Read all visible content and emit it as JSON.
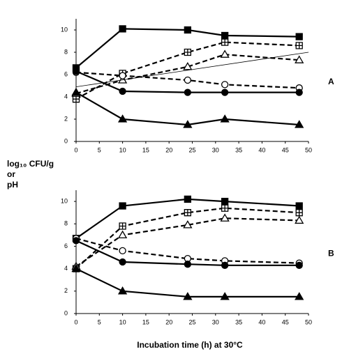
{
  "y_label": [
    "log₁₀ CFU/g",
    "or",
    "pH"
  ],
  "x_label": "Incubation time (h) at 30°C",
  "chart_data": [
    {
      "type": "line",
      "panel_label": "A",
      "x": [
        0,
        10,
        24,
        32,
        48
      ],
      "xlim": [
        0,
        50
      ],
      "xticks": [
        0,
        5,
        10,
        15,
        20,
        25,
        30,
        35,
        40,
        45,
        50
      ],
      "ylim": [
        0,
        11
      ],
      "yticks": [
        0,
        2,
        4,
        6,
        8,
        10
      ],
      "series": [
        {
          "marker": "square",
          "dash": "solid",
          "color": "#000000",
          "values": [
            6.6,
            10.1,
            10.0,
            9.5,
            9.4
          ]
        },
        {
          "marker": "square-plus",
          "dash": "dashed",
          "color": "#000000",
          "values": [
            3.8,
            6.1,
            8.0,
            8.9,
            8.6
          ]
        },
        {
          "marker": "triangle-open",
          "dash": "dashed",
          "color": "#000000",
          "values": [
            4.3,
            5.5,
            6.7,
            7.8,
            7.3
          ]
        },
        {
          "marker": "circle-open",
          "dash": "dashed",
          "color": "#000000",
          "values": [
            6.2,
            5.9,
            5.5,
            5.1,
            4.8
          ]
        },
        {
          "marker": "circle",
          "dash": "solid",
          "color": "#000000",
          "values": [
            6.3,
            4.5,
            4.4,
            4.4,
            4.4
          ]
        },
        {
          "marker": "triangle",
          "dash": "solid",
          "color": "#000000",
          "values": [
            4.4,
            2.0,
            1.5,
            2.0,
            1.5
          ]
        },
        {
          "marker": "none",
          "dash": "thin",
          "color": "#000000",
          "x": [
            0,
            50
          ],
          "values": [
            4.9,
            8.0
          ]
        }
      ]
    },
    {
      "type": "line",
      "panel_label": "B",
      "x": [
        0,
        10,
        24,
        32,
        48
      ],
      "xlim": [
        0,
        50
      ],
      "xticks": [
        0,
        5,
        10,
        15,
        20,
        25,
        30,
        35,
        40,
        45,
        50
      ],
      "ylim": [
        0,
        11
      ],
      "yticks": [
        0,
        2,
        4,
        6,
        8,
        10
      ],
      "series": [
        {
          "marker": "square",
          "dash": "solid",
          "color": "#000000",
          "values": [
            6.7,
            9.6,
            10.2,
            10.0,
            9.6
          ]
        },
        {
          "marker": "square-plus",
          "dash": "dashed",
          "color": "#000000",
          "values": [
            4.0,
            7.8,
            9.0,
            9.4,
            9.0
          ]
        },
        {
          "marker": "triangle-open",
          "dash": "dashed",
          "color": "#000000",
          "values": [
            4.2,
            7.0,
            7.9,
            8.5,
            8.3
          ]
        },
        {
          "marker": "circle-open",
          "dash": "dashed",
          "color": "#000000",
          "values": [
            6.7,
            5.6,
            4.9,
            4.7,
            4.5
          ]
        },
        {
          "marker": "circle",
          "dash": "solid",
          "color": "#000000",
          "values": [
            6.5,
            4.6,
            4.4,
            4.3,
            4.3
          ]
        },
        {
          "marker": "triangle",
          "dash": "solid",
          "color": "#000000",
          "values": [
            4.0,
            2.0,
            1.5,
            1.5,
            1.5
          ]
        }
      ]
    }
  ]
}
